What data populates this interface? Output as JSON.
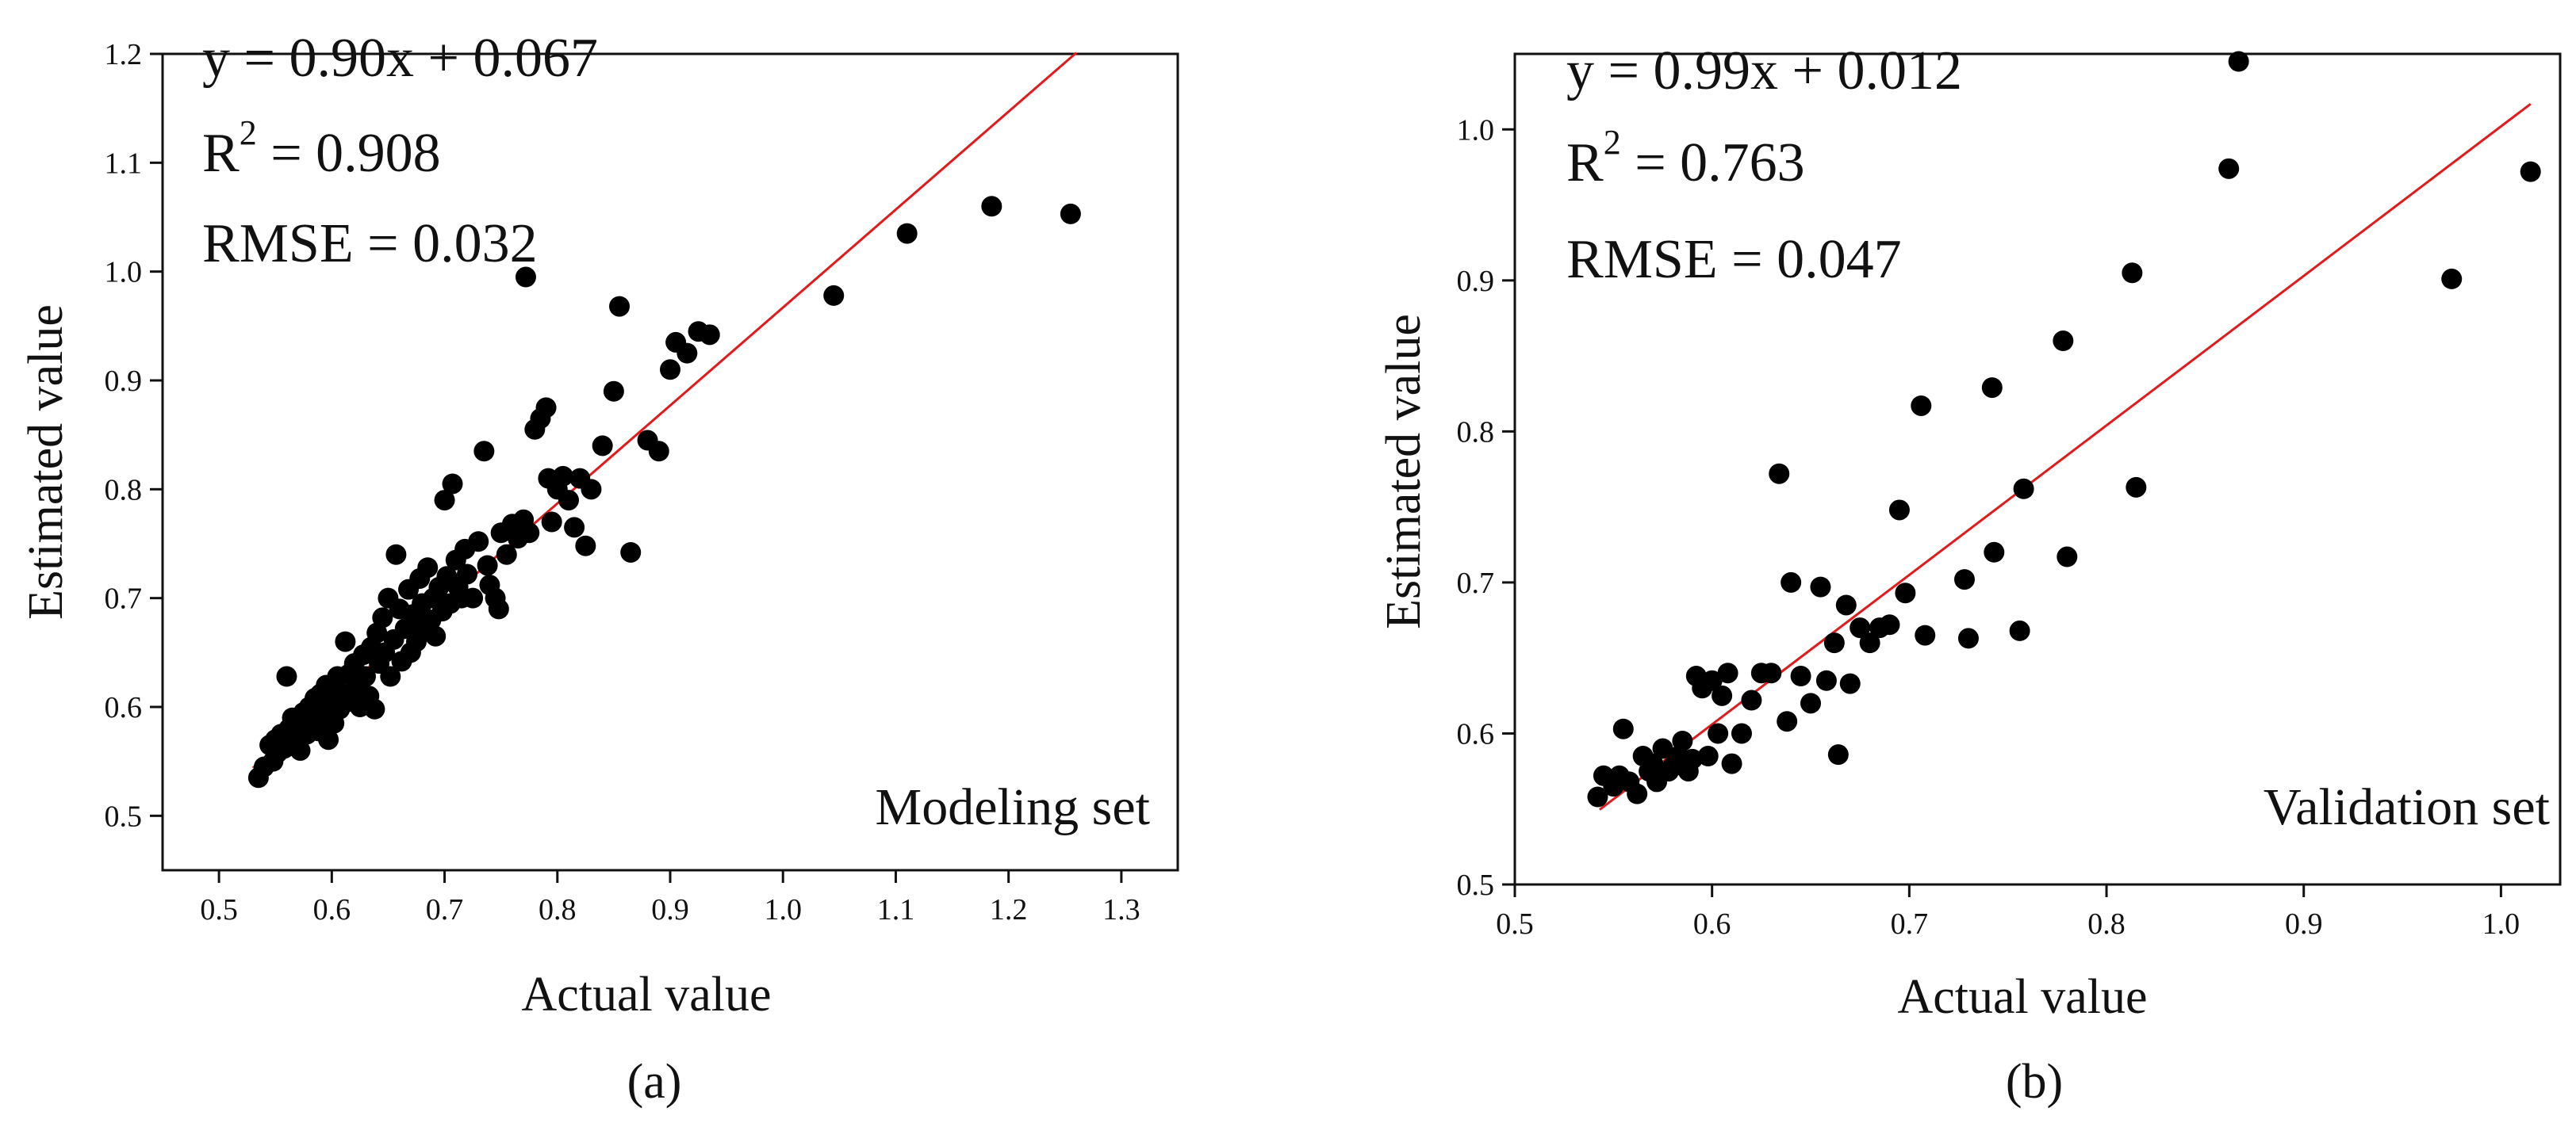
{
  "chart_data": [
    {
      "type": "scatter",
      "panel_caption": "(a)",
      "set_label": "Modeling set",
      "xlabel": "Actual value",
      "ylabel": "Estimated value",
      "xlim": [
        0.45,
        1.35
      ],
      "ylim": [
        0.45,
        1.2
      ],
      "xticks": [
        0.5,
        0.6,
        0.7,
        0.8,
        0.9,
        1.0,
        1.1,
        1.2,
        1.3
      ],
      "xtick_labels": [
        "0.5",
        "0.6",
        "0.7",
        "0.8",
        "0.9",
        "1.0",
        "1.1",
        "1.2",
        "1.3"
      ],
      "yticks": [
        0.5,
        0.6,
        0.7,
        0.8,
        0.9,
        1.0,
        1.1,
        1.2
      ],
      "ytick_labels": [
        "0.5",
        "0.6",
        "0.7",
        "0.8",
        "0.9",
        "1.0",
        "1.1",
        "1.2"
      ],
      "equation": "y = 0.90x + 0.067",
      "r2_prefix": "R",
      "r2_sup": "2",
      "r2_value": " = 0.908",
      "rmse": "RMSE = 0.032",
      "fit_line": {
        "slope": 0.9,
        "intercept": 0.067,
        "x_start": 0.53,
        "x_end": 1.26,
        "color": "#e31a1c"
      },
      "point_color": "#000000",
      "points": [
        [
          0.535,
          0.535
        ],
        [
          0.54,
          0.545
        ],
        [
          0.545,
          0.565
        ],
        [
          0.548,
          0.55
        ],
        [
          0.55,
          0.57
        ],
        [
          0.552,
          0.558
        ],
        [
          0.555,
          0.575
        ],
        [
          0.558,
          0.562
        ],
        [
          0.56,
          0.628
        ],
        [
          0.562,
          0.58
        ],
        [
          0.565,
          0.59
        ],
        [
          0.566,
          0.57
        ],
        [
          0.57,
          0.585
        ],
        [
          0.572,
          0.56
        ],
        [
          0.575,
          0.595
        ],
        [
          0.578,
          0.575
        ],
        [
          0.58,
          0.6
        ],
        [
          0.582,
          0.588
        ],
        [
          0.585,
          0.608
        ],
        [
          0.588,
          0.578
        ],
        [
          0.59,
          0.612
        ],
        [
          0.592,
          0.595
        ],
        [
          0.595,
          0.62
        ],
        [
          0.597,
          0.57
        ],
        [
          0.6,
          0.605
        ],
        [
          0.602,
          0.585
        ],
        [
          0.605,
          0.628
        ],
        [
          0.607,
          0.598
        ],
        [
          0.61,
          0.612
        ],
        [
          0.612,
          0.66
        ],
        [
          0.615,
          0.63
        ],
        [
          0.618,
          0.605
        ],
        [
          0.62,
          0.64
        ],
        [
          0.622,
          0.618
        ],
        [
          0.625,
          0.6
        ],
        [
          0.628,
          0.648
        ],
        [
          0.63,
          0.628
        ],
        [
          0.633,
          0.61
        ],
        [
          0.635,
          0.655
        ],
        [
          0.638,
          0.598
        ],
        [
          0.64,
          0.668
        ],
        [
          0.642,
          0.64
        ],
        [
          0.645,
          0.682
        ],
        [
          0.647,
          0.65
        ],
        [
          0.65,
          0.7
        ],
        [
          0.652,
          0.628
        ],
        [
          0.655,
          0.662
        ],
        [
          0.657,
          0.74
        ],
        [
          0.66,
          0.69
        ],
        [
          0.662,
          0.642
        ],
        [
          0.665,
          0.672
        ],
        [
          0.668,
          0.708
        ],
        [
          0.67,
          0.65
        ],
        [
          0.672,
          0.685
        ],
        [
          0.675,
          0.66
        ],
        [
          0.678,
          0.718
        ],
        [
          0.68,
          0.695
        ],
        [
          0.682,
          0.672
        ],
        [
          0.685,
          0.728
        ],
        [
          0.688,
          0.68
        ],
        [
          0.69,
          0.7
        ],
        [
          0.692,
          0.665
        ],
        [
          0.695,
          0.71
        ],
        [
          0.698,
          0.688
        ],
        [
          0.7,
          0.79
        ],
        [
          0.702,
          0.72
        ],
        [
          0.705,
          0.695
        ],
        [
          0.707,
          0.805
        ],
        [
          0.71,
          0.735
        ],
        [
          0.712,
          0.71
        ],
        [
          0.715,
          0.7
        ],
        [
          0.718,
          0.745
        ],
        [
          0.72,
          0.722
        ],
        [
          0.725,
          0.7
        ],
        [
          0.73,
          0.752
        ],
        [
          0.735,
          0.835
        ],
        [
          0.738,
          0.73
        ],
        [
          0.74,
          0.712
        ],
        [
          0.745,
          0.7
        ],
        [
          0.748,
          0.69
        ],
        [
          0.75,
          0.76
        ],
        [
          0.755,
          0.74
        ],
        [
          0.76,
          0.768
        ],
        [
          0.765,
          0.755
        ],
        [
          0.77,
          0.772
        ],
        [
          0.772,
          0.995
        ],
        [
          0.775,
          0.76
        ],
        [
          0.78,
          0.855
        ],
        [
          0.785,
          0.865
        ],
        [
          0.79,
          0.875
        ],
        [
          0.792,
          0.81
        ],
        [
          0.795,
          0.77
        ],
        [
          0.8,
          0.8
        ],
        [
          0.805,
          0.812
        ],
        [
          0.81,
          0.79
        ],
        [
          0.815,
          0.765
        ],
        [
          0.82,
          0.81
        ],
        [
          0.825,
          0.748
        ],
        [
          0.83,
          0.8
        ],
        [
          0.84,
          0.84
        ],
        [
          0.85,
          0.89
        ],
        [
          0.855,
          0.968
        ],
        [
          0.865,
          0.742
        ],
        [
          0.88,
          0.845
        ],
        [
          0.89,
          0.835
        ],
        [
          0.9,
          0.91
        ],
        [
          0.905,
          0.935
        ],
        [
          0.915,
          0.925
        ],
        [
          0.925,
          0.945
        ],
        [
          0.935,
          0.942
        ],
        [
          1.045,
          0.978
        ],
        [
          1.11,
          1.035
        ],
        [
          1.185,
          1.06
        ],
        [
          1.255,
          1.053
        ]
      ]
    },
    {
      "type": "scatter",
      "panel_caption": "(b)",
      "set_label": "Validation set",
      "xlabel": "Actual value",
      "ylabel": "Estimated value",
      "xlim": [
        0.5,
        1.03
      ],
      "ylim": [
        0.5,
        1.05
      ],
      "xticks": [
        0.5,
        0.6,
        0.7,
        0.8,
        0.9,
        1.0
      ],
      "xtick_labels": [
        "0.5",
        "0.6",
        "0.7",
        "0.8",
        "0.9",
        "1.0"
      ],
      "yticks": [
        0.5,
        0.6,
        0.7,
        0.8,
        0.9,
        1.0
      ],
      "ytick_labels": [
        "0.5",
        "0.6",
        "0.7",
        "0.8",
        "0.9",
        "1.0"
      ],
      "equation": "y = 0.99x + 0.012",
      "r2_prefix": "R",
      "r2_sup": "2",
      "r2_value": " = 0.763",
      "rmse": "RMSE = 0.047",
      "fit_line": {
        "slope": 0.99,
        "intercept": 0.012,
        "x_start": 0.543,
        "x_end": 1.015,
        "color": "#e31a1c"
      },
      "point_color": "#000000",
      "points": [
        [
          0.542,
          0.558
        ],
        [
          0.545,
          0.572
        ],
        [
          0.55,
          0.565
        ],
        [
          0.553,
          0.572
        ],
        [
          0.555,
          0.603
        ],
        [
          0.558,
          0.568
        ],
        [
          0.562,
          0.56
        ],
        [
          0.565,
          0.585
        ],
        [
          0.568,
          0.575
        ],
        [
          0.57,
          0.58
        ],
        [
          0.572,
          0.568
        ],
        [
          0.575,
          0.59
        ],
        [
          0.578,
          0.575
        ],
        [
          0.58,
          0.578
        ],
        [
          0.583,
          0.585
        ],
        [
          0.585,
          0.595
        ],
        [
          0.588,
          0.575
        ],
        [
          0.59,
          0.583
        ],
        [
          0.592,
          0.638
        ],
        [
          0.595,
          0.63
        ],
        [
          0.598,
          0.585
        ],
        [
          0.6,
          0.635
        ],
        [
          0.603,
          0.6
        ],
        [
          0.605,
          0.625
        ],
        [
          0.608,
          0.64
        ],
        [
          0.61,
          0.58
        ],
        [
          0.615,
          0.6
        ],
        [
          0.62,
          0.622
        ],
        [
          0.625,
          0.64
        ],
        [
          0.63,
          0.64
        ],
        [
          0.634,
          0.772
        ],
        [
          0.638,
          0.608
        ],
        [
          0.64,
          0.7
        ],
        [
          0.645,
          0.638
        ],
        [
          0.65,
          0.62
        ],
        [
          0.655,
          0.697
        ],
        [
          0.658,
          0.635
        ],
        [
          0.662,
          0.66
        ],
        [
          0.664,
          0.586
        ],
        [
          0.668,
          0.685
        ],
        [
          0.67,
          0.633
        ],
        [
          0.675,
          0.67
        ],
        [
          0.68,
          0.66
        ],
        [
          0.685,
          0.67
        ],
        [
          0.69,
          0.672
        ],
        [
          0.695,
          0.748
        ],
        [
          0.698,
          0.693
        ],
        [
          0.706,
          0.817
        ],
        [
          0.708,
          0.665
        ],
        [
          0.728,
          0.702
        ],
        [
          0.73,
          0.663
        ],
        [
          0.742,
          0.829
        ],
        [
          0.743,
          0.72
        ],
        [
          0.756,
          0.668
        ],
        [
          0.758,
          0.762
        ],
        [
          0.778,
          0.86
        ],
        [
          0.78,
          0.717
        ],
        [
          0.813,
          0.905
        ],
        [
          0.815,
          0.763
        ],
        [
          0.862,
          0.974
        ],
        [
          0.867,
          1.045
        ],
        [
          0.975,
          0.901
        ],
        [
          1.015,
          0.972
        ]
      ]
    }
  ]
}
